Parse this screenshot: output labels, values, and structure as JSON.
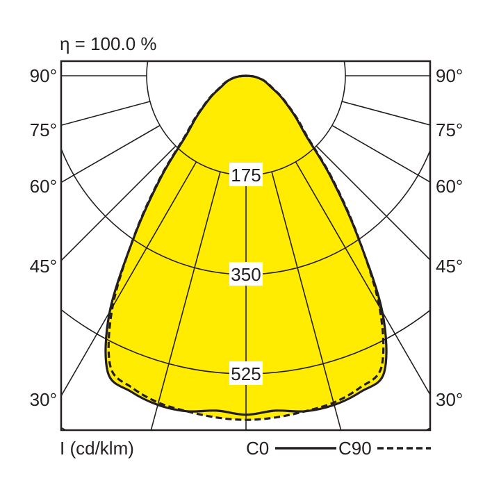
{
  "chart_data": {
    "type": "polar",
    "title": "η = 100.0 %",
    "unit_label": "I (cd/klm)",
    "angle_labels": [
      "90°",
      "75°",
      "60°",
      "45°",
      "30°"
    ],
    "angles_deg": [
      0,
      5,
      10,
      15,
      20,
      25,
      30,
      35,
      40,
      45,
      50,
      55,
      60,
      65,
      70,
      75,
      80,
      85,
      90
    ],
    "radial_ticks": [
      "175",
      "350",
      "525"
    ],
    "radial_grid_values": [
      175,
      350,
      525,
      700
    ],
    "series": [
      {
        "name": "C0",
        "style": "solid",
        "values": [
          597,
          592,
          600,
          600,
          592,
          576,
          480,
          340,
          232,
          150,
          115,
          88,
          68,
          50,
          40,
          32,
          22,
          12,
          0
        ]
      },
      {
        "name": "C90",
        "style": "dashed",
        "values": [
          606,
          604,
          600,
          596,
          585,
          565,
          470,
          342,
          236,
          154,
          118,
          90,
          70,
          52,
          42,
          33,
          23,
          12,
          0
        ]
      }
    ],
    "colors": {
      "fill": "#FFEC00",
      "line": "#231F20"
    }
  }
}
